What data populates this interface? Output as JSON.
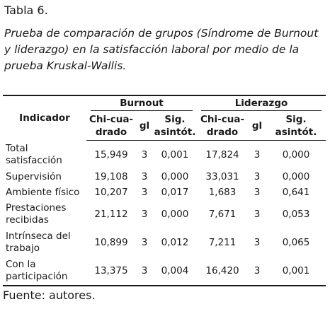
{
  "table_label": "Tabla 6.",
  "caption": "Prueba de comparación de grupos (Síndrome de Burnout y liderazgo) en la satisfacción laboral por medio de la prueba Kruskal-Wallis.",
  "table": {
    "indicator_header": "Indicador",
    "groups": [
      "Burnout",
      "Liderazgo"
    ],
    "sub_headers": [
      "Chi-cua-\ndrado",
      "gl",
      "Sig.\nasintót."
    ],
    "rows": [
      {
        "name": "Total\nsatisfacción",
        "burnout": [
          "15,949",
          "3",
          "0,001"
        ],
        "liderazgo": [
          "17,824",
          "3",
          "0,000"
        ]
      },
      {
        "name": "Supervisión",
        "burnout": [
          "19,108",
          "3",
          "0,000"
        ],
        "liderazgo": [
          "33,031",
          "3",
          "0,000"
        ]
      },
      {
        "name": "Ambiente físico",
        "burnout": [
          "10,207",
          "3",
          "0,017"
        ],
        "liderazgo": [
          "1,683",
          "3",
          "0,641"
        ]
      },
      {
        "name": "Prestaciones\nrecibidas",
        "burnout": [
          "21,112",
          "3",
          "0,000"
        ],
        "liderazgo": [
          "7,671",
          "3",
          "0,053"
        ]
      },
      {
        "name": "Intrínseca del\ntrabajo",
        "burnout": [
          "10,899",
          "3",
          "0,012"
        ],
        "liderazgo": [
          "7,211",
          "3",
          "0,065"
        ]
      },
      {
        "name": "Con la\nparticipación",
        "burnout": [
          "13,375",
          "3",
          "0,004"
        ],
        "liderazgo": [
          "16,420",
          "3",
          "0,001"
        ]
      }
    ]
  },
  "source": "Fuente: autores."
}
